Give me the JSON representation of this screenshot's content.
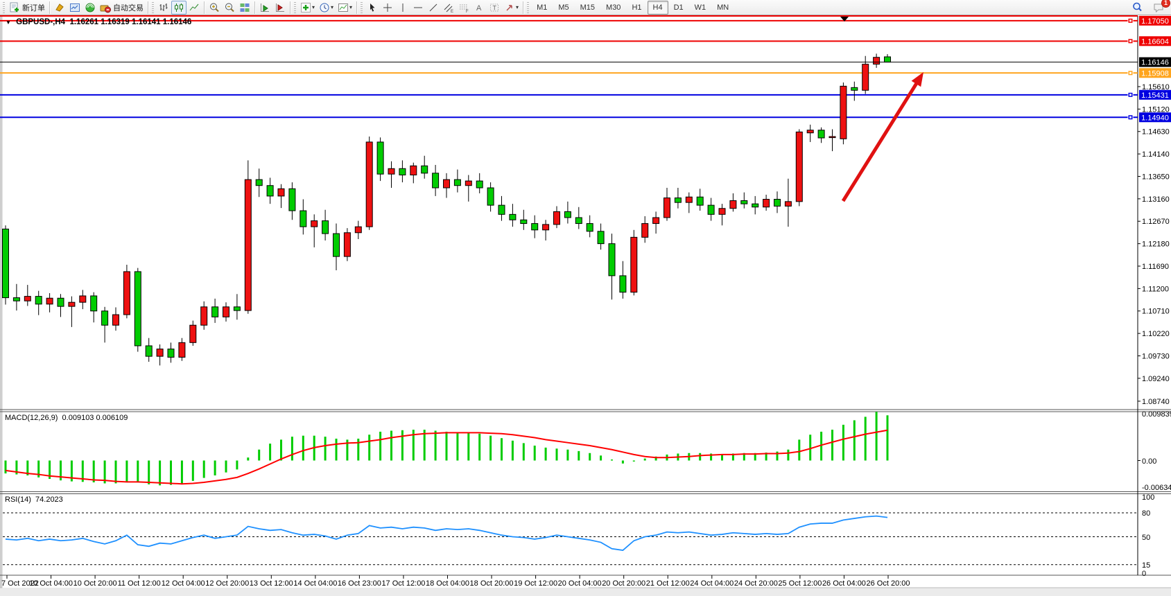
{
  "toolbar": {
    "new_order_label": "新订单",
    "autotrade_label": "自动交易",
    "timeframes": [
      "M1",
      "M5",
      "M15",
      "M30",
      "H1",
      "H4",
      "D1",
      "W1",
      "MN"
    ],
    "active_timeframe": "H4",
    "notification_count": "1"
  },
  "chart": {
    "title": {
      "symbol": "GBPUSD-,H4",
      "ohlc": "1.16261 1.16319 1.16141 1.16146"
    },
    "current_price": {
      "value": 1.16146,
      "label": "1.16146",
      "color": "#000000"
    },
    "hlines": [
      {
        "price": 1.17154,
        "label": "",
        "color": "#ee0000"
      },
      {
        "price": 1.1705,
        "label": "1.17050",
        "color": "#ee0000"
      },
      {
        "price": 1.16604,
        "label": "1.16604",
        "color": "#ee0000"
      },
      {
        "price": 1.15908,
        "label": "1.15908",
        "color": "#ffa41c"
      },
      {
        "price": 1.15431,
        "label": "1.15431",
        "color": "#0000e0"
      },
      {
        "price": 1.1494,
        "label": "1.14940",
        "color": "#0000e0"
      }
    ],
    "price_ticks": [
      "1.15610",
      "1.15120",
      "1.14630",
      "1.14140",
      "1.13650",
      "1.13160",
      "1.12670",
      "1.12180",
      "1.11690",
      "1.11200",
      "1.10710",
      "1.10220",
      "1.09730",
      "1.09240",
      "1.08740"
    ],
    "time_labels": [
      "7 Oct 2022",
      "10 Oct 04:00",
      "10 Oct 20:00",
      "11 Oct 12:00",
      "12 Oct 04:00",
      "12 Oct 20:00",
      "13 Oct 12:00",
      "14 Oct 04:00",
      "16 Oct 23:00",
      "17 Oct 12:00",
      "18 Oct 04:00",
      "18 Oct 20:00",
      "19 Oct 12:00",
      "20 Oct 04:00",
      "20 Oct 20:00",
      "21 Oct 12:00",
      "24 Oct 04:00",
      "24 Oct 20:00",
      "25 Oct 12:00",
      "26 Oct 04:00",
      "26 Oct 20:00"
    ],
    "trend_arrow": {
      "direction": "up",
      "color": "#e01111"
    }
  },
  "indicators": {
    "macd": {
      "title": "MACD(12,26,9)",
      "values": "0.009103 0.006109",
      "axis": {
        "max": "0.009839",
        "zero": "0.00",
        "min": "-0.006341"
      },
      "histogram_color": "#00cc00",
      "signal_color": "#ff0000",
      "histogram": [
        -0.0026,
        -0.0028,
        -0.003,
        -0.0034,
        -0.0037,
        -0.004,
        -0.0042,
        -0.0043,
        -0.0044,
        -0.0046,
        -0.0046,
        -0.0042,
        -0.0044,
        -0.0048,
        -0.005,
        -0.0049,
        -0.0046,
        -0.0041,
        -0.0035,
        -0.003,
        -0.0024,
        -0.0018,
        0.0006,
        0.0022,
        0.0034,
        0.0042,
        0.0048,
        0.005,
        0.005,
        0.0048,
        0.0044,
        0.0042,
        0.0044,
        0.0052,
        0.0058,
        0.006,
        0.0061,
        0.0062,
        0.0062,
        0.006,
        0.0058,
        0.0057,
        0.0056,
        0.0054,
        0.005,
        0.0045,
        0.004,
        0.0035,
        0.003,
        0.0026,
        0.0024,
        0.0022,
        0.0019,
        0.0015,
        0.001,
        0.0002,
        -0.0006,
        -0.0002,
        0.0004,
        0.0008,
        0.0012,
        0.0014,
        0.0015,
        0.0015,
        0.0014,
        0.0013,
        0.0014,
        0.0015,
        0.0015,
        0.0016,
        0.0018,
        0.0022,
        0.0042,
        0.0052,
        0.0058,
        0.0062,
        0.0072,
        0.0081,
        0.0088,
        0.0098,
        0.0091
      ],
      "signal": [
        -0.002,
        -0.0023,
        -0.0026,
        -0.0028,
        -0.0031,
        -0.0033,
        -0.0035,
        -0.0037,
        -0.0039,
        -0.004,
        -0.0042,
        -0.0043,
        -0.0043,
        -0.0044,
        -0.0045,
        -0.0046,
        -0.0047,
        -0.0046,
        -0.0044,
        -0.0041,
        -0.0038,
        -0.0034,
        -0.0026,
        -0.0017,
        -0.0007,
        0.0003,
        0.0012,
        0.002,
        0.0026,
        0.003,
        0.0033,
        0.0035,
        0.0036,
        0.0039,
        0.0042,
        0.0046,
        0.0049,
        0.0052,
        0.0054,
        0.0055,
        0.0056,
        0.0056,
        0.0056,
        0.0056,
        0.0055,
        0.0054,
        0.0052,
        0.0049,
        0.0046,
        0.0042,
        0.0039,
        0.0036,
        0.0033,
        0.003,
        0.0026,
        0.0022,
        0.0017,
        0.0012,
        0.0008,
        0.0006,
        0.0006,
        0.0007,
        0.0008,
        0.001,
        0.0011,
        0.0012,
        0.0012,
        0.0013,
        0.0013,
        0.0014,
        0.0014,
        0.0015,
        0.0018,
        0.0024,
        0.0031,
        0.0037,
        0.0043,
        0.0048,
        0.0053,
        0.0057,
        0.0061
      ]
    },
    "rsi": {
      "title": "RSI(14)",
      "value": "74.2023",
      "axis_labels": [
        "100",
        "80",
        "50",
        "15",
        "0"
      ],
      "levels": [
        80,
        50,
        15
      ],
      "line_color": "#1e90ff",
      "series": [
        47,
        46,
        48,
        45,
        47,
        45,
        46,
        48,
        44,
        41,
        45,
        52,
        40,
        38,
        42,
        41,
        45,
        49,
        52,
        48,
        50,
        52,
        63,
        60,
        58,
        59,
        55,
        52,
        53,
        51,
        47,
        52,
        54,
        64,
        61,
        62,
        60,
        62,
        61,
        58,
        60,
        59,
        60,
        58,
        55,
        52,
        50,
        49,
        47,
        49,
        52,
        50,
        48,
        46,
        43,
        35,
        33,
        45,
        50,
        52,
        56,
        55,
        56,
        54,
        52,
        53,
        55,
        54,
        53,
        54,
        53,
        54,
        62,
        66,
        67,
        67,
        71,
        73,
        75,
        76,
        74.2
      ]
    }
  },
  "chart_data": {
    "type": "candlestick",
    "symbol": "GBPUSD",
    "timeframe": "H4",
    "up_color": "#ee1111",
    "down_color": "#00cc00",
    "candles": [
      [
        1.125,
        1.1258,
        1.1085,
        1.11
      ],
      [
        1.11,
        1.113,
        1.1072,
        1.1093
      ],
      [
        1.1093,
        1.1128,
        1.1082,
        1.1103
      ],
      [
        1.1103,
        1.1115,
        1.1062,
        1.1086
      ],
      [
        1.1086,
        1.111,
        1.1068,
        1.1099
      ],
      [
        1.1099,
        1.1108,
        1.1058,
        1.1081
      ],
      [
        1.1081,
        1.1103,
        1.1036,
        1.109
      ],
      [
        1.109,
        1.1117,
        1.1075,
        1.1104
      ],
      [
        1.1104,
        1.1112,
        1.1046,
        1.1071
      ],
      [
        1.1071,
        1.108,
        1.1002,
        1.104
      ],
      [
        1.104,
        1.1079,
        1.1028,
        1.1063
      ],
      [
        1.1063,
        1.1172,
        1.1055,
        1.1157
      ],
      [
        1.1157,
        1.1165,
        1.0982,
        1.0995
      ],
      [
        1.0995,
        1.1012,
        1.096,
        1.0972
      ],
      [
        1.0972,
        1.0998,
        1.0952,
        1.0988
      ],
      [
        1.0988,
        1.1002,
        1.0958,
        1.097
      ],
      [
        1.097,
        1.1012,
        1.0962,
        1.1002
      ],
      [
        1.1002,
        1.105,
        1.0995,
        1.104
      ],
      [
        1.104,
        1.1092,
        1.103,
        1.108
      ],
      [
        1.108,
        1.1098,
        1.1045,
        1.1058
      ],
      [
        1.1058,
        1.109,
        1.1048,
        1.108
      ],
      [
        1.108,
        1.1108,
        1.1052,
        1.1072
      ],
      [
        1.1072,
        1.14,
        1.1065,
        1.1358
      ],
      [
        1.1358,
        1.1382,
        1.132,
        1.1345
      ],
      [
        1.1345,
        1.1362,
        1.1305,
        1.1322
      ],
      [
        1.1322,
        1.1348,
        1.1296,
        1.1338
      ],
      [
        1.1338,
        1.1352,
        1.127,
        1.129
      ],
      [
        1.129,
        1.1315,
        1.1238,
        1.1255
      ],
      [
        1.1255,
        1.1282,
        1.121,
        1.1268
      ],
      [
        1.1268,
        1.1292,
        1.1225,
        1.124
      ],
      [
        1.124,
        1.1262,
        1.116,
        1.119
      ],
      [
        1.119,
        1.1252,
        1.118,
        1.1242
      ],
      [
        1.1242,
        1.1268,
        1.1228,
        1.1255
      ],
      [
        1.1255,
        1.1452,
        1.1248,
        1.144
      ],
      [
        1.144,
        1.145,
        1.1355,
        1.137
      ],
      [
        1.137,
        1.1398,
        1.134,
        1.1382
      ],
      [
        1.1382,
        1.14,
        1.1352,
        1.1368
      ],
      [
        1.1368,
        1.1395,
        1.135,
        1.1388
      ],
      [
        1.1388,
        1.141,
        1.136,
        1.1372
      ],
      [
        1.1372,
        1.139,
        1.1322,
        1.134
      ],
      [
        1.134,
        1.1372,
        1.1318,
        1.1358
      ],
      [
        1.1358,
        1.138,
        1.133,
        1.1345
      ],
      [
        1.1345,
        1.1368,
        1.131,
        1.1355
      ],
      [
        1.1355,
        1.1372,
        1.1328,
        1.134
      ],
      [
        1.134,
        1.1352,
        1.1288,
        1.1302
      ],
      [
        1.1302,
        1.1322,
        1.1268,
        1.1282
      ],
      [
        1.1282,
        1.1305,
        1.1255,
        1.127
      ],
      [
        1.127,
        1.1292,
        1.1248,
        1.1262
      ],
      [
        1.1262,
        1.128,
        1.123,
        1.1248
      ],
      [
        1.1248,
        1.127,
        1.1225,
        1.126
      ],
      [
        1.126,
        1.13,
        1.1252,
        1.1288
      ],
      [
        1.1288,
        1.131,
        1.1262,
        1.1275
      ],
      [
        1.1275,
        1.1298,
        1.125,
        1.1262
      ],
      [
        1.1262,
        1.128,
        1.1232,
        1.1245
      ],
      [
        1.1245,
        1.1262,
        1.1205,
        1.1218
      ],
      [
        1.1218,
        1.124,
        1.1096,
        1.1148
      ],
      [
        1.1148,
        1.118,
        1.1098,
        1.1112
      ],
      [
        1.1112,
        1.1248,
        1.1105,
        1.1232
      ],
      [
        1.1232,
        1.1278,
        1.122,
        1.1262
      ],
      [
        1.1262,
        1.1288,
        1.124,
        1.1275
      ],
      [
        1.1275,
        1.134,
        1.1268,
        1.1318
      ],
      [
        1.1318,
        1.134,
        1.1295,
        1.1308
      ],
      [
        1.1308,
        1.133,
        1.1285,
        1.132
      ],
      [
        1.132,
        1.1338,
        1.129,
        1.1302
      ],
      [
        1.1302,
        1.1318,
        1.1268,
        1.1282
      ],
      [
        1.1282,
        1.1305,
        1.1258,
        1.1295
      ],
      [
        1.1295,
        1.1328,
        1.1288,
        1.1312
      ],
      [
        1.1312,
        1.133,
        1.1295,
        1.1305
      ],
      [
        1.1305,
        1.1322,
        1.1282,
        1.1298
      ],
      [
        1.1298,
        1.1325,
        1.129,
        1.1315
      ],
      [
        1.1315,
        1.1332,
        1.1285,
        1.13
      ],
      [
        1.13,
        1.136,
        1.1255,
        1.131
      ],
      [
        1.131,
        1.1468,
        1.13,
        1.1462
      ],
      [
        1.146,
        1.1478,
        1.144,
        1.1466
      ],
      [
        1.1466,
        1.1472,
        1.1438,
        1.1449
      ],
      [
        1.1452,
        1.1468,
        1.142,
        1.1452
      ],
      [
        1.1447,
        1.157,
        1.1435,
        1.1562
      ],
      [
        1.1559,
        1.1572,
        1.153,
        1.1553
      ],
      [
        1.1553,
        1.1628,
        1.1545,
        1.161
      ],
      [
        1.161,
        1.1633,
        1.1602,
        1.1625
      ],
      [
        1.16261,
        1.16319,
        1.16141,
        1.16146
      ]
    ]
  }
}
